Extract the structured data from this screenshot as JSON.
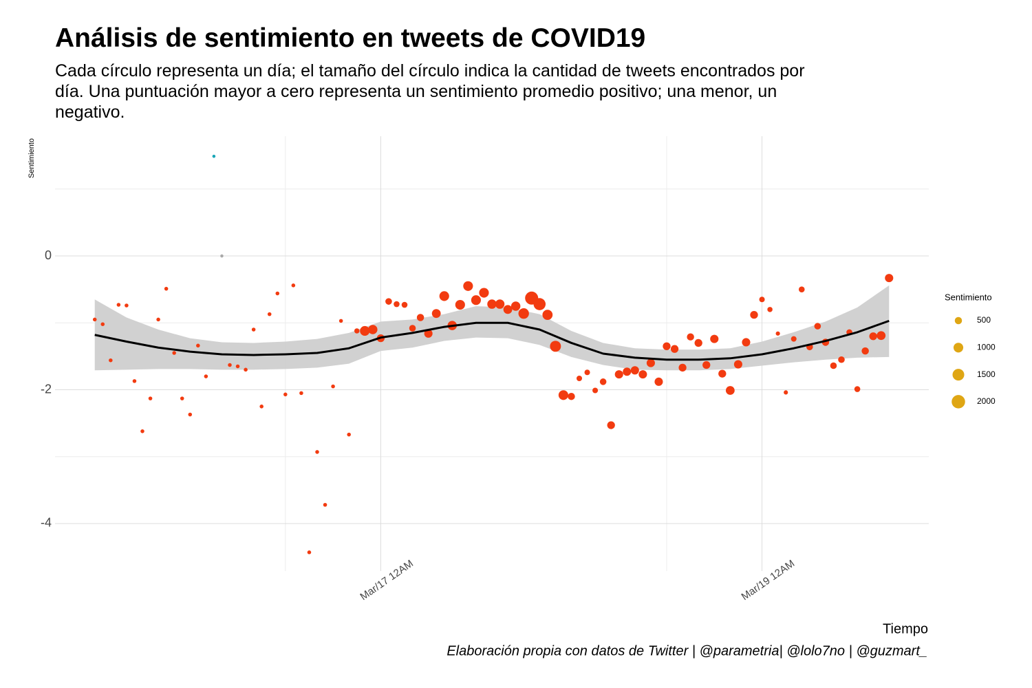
{
  "chart_data": {
    "type": "scatter",
    "title": "Análisis de sentimiento en tweets de COVID19",
    "subtitle": "Cada círculo representa un día; el tamaño del círculo indica la cantidad de tweets encontrados por día. Una puntuación mayor a cero representa un sentimiento promedio positivo; una menor, un negativo.",
    "x_label": "Tiempo",
    "y_label": "Sentimiento",
    "caption": "Elaboración propia con datos de Twitter | @parametria| @lolo7no | @guzmart_",
    "x": [
      "Mar/15 12PM",
      "Mar/15 1PM",
      "Mar/15 2PM",
      "Mar/15 3PM",
      "Mar/15 4PM",
      "Mar/15 5PM",
      "Mar/15 6PM",
      "Mar/15 7PM",
      "Mar/15 8PM",
      "Mar/15 9PM",
      "Mar/15 10PM",
      "Mar/15 11PM",
      "Mar/16 12AM",
      "Mar/16 1AM",
      "Mar/16 2AM",
      "Mar/16 3AM",
      "Mar/16 4AM",
      "Mar/16 5AM",
      "Mar/16 6AM",
      "Mar/16 7AM",
      "Mar/16 8AM",
      "Mar/16 9AM",
      "Mar/16 10AM",
      "Mar/16 11AM",
      "Mar/16 12PM",
      "Mar/16 1PM",
      "Mar/16 2PM",
      "Mar/16 3PM",
      "Mar/16 4PM",
      "Mar/16 5PM",
      "Mar/16 6PM",
      "Mar/16 7PM",
      "Mar/16 8PM",
      "Mar/16 9PM",
      "Mar/16 10PM",
      "Mar/16 11PM",
      "Mar/17 12AM",
      "Mar/17 1AM",
      "Mar/17 2AM",
      "Mar/17 3AM",
      "Mar/17 4AM",
      "Mar/17 5AM",
      "Mar/17 6AM",
      "Mar/17 7AM",
      "Mar/17 8AM",
      "Mar/17 9AM",
      "Mar/17 10AM",
      "Mar/17 11AM",
      "Mar/17 12PM",
      "Mar/17 1PM",
      "Mar/17 2PM",
      "Mar/17 3PM",
      "Mar/17 4PM",
      "Mar/17 5PM",
      "Mar/17 6PM",
      "Mar/17 7PM",
      "Mar/17 8PM",
      "Mar/17 9PM",
      "Mar/17 10PM",
      "Mar/17 11PM",
      "Mar/18 12AM",
      "Mar/18 1AM",
      "Mar/18 2AM",
      "Mar/18 3AM",
      "Mar/18 4AM",
      "Mar/18 5AM",
      "Mar/18 6AM",
      "Mar/18 7AM",
      "Mar/18 8AM",
      "Mar/18 9AM",
      "Mar/18 10AM",
      "Mar/18 11AM",
      "Mar/18 12PM",
      "Mar/18 1PM",
      "Mar/18 2PM",
      "Mar/18 3PM",
      "Mar/18 4PM",
      "Mar/18 5PM",
      "Mar/18 6PM",
      "Mar/18 7PM",
      "Mar/18 8PM",
      "Mar/18 9PM",
      "Mar/18 10PM",
      "Mar/18 11PM",
      "Mar/19 12AM",
      "Mar/19 1AM",
      "Mar/19 2AM",
      "Mar/19 3AM",
      "Mar/19 4AM",
      "Mar/19 5AM",
      "Mar/19 6AM",
      "Mar/19 7AM",
      "Mar/19 8AM",
      "Mar/19 9AM",
      "Mar/19 10AM",
      "Mar/19 11AM",
      "Mar/19 12PM",
      "Mar/19 1PM",
      "Mar/19 2PM",
      "Mar/19 3PM",
      "Mar/19 4PM"
    ],
    "values": [
      -0.95,
      -1.02,
      -1.56,
      -0.73,
      -0.74,
      -1.87,
      -2.62,
      -2.13,
      -0.95,
      -0.49,
      -1.45,
      -2.13,
      -2.37,
      -1.34,
      -1.8,
      1.49,
      0,
      -1.63,
      -1.65,
      -1.7,
      -1.1,
      -2.25,
      -0.87,
      -0.56,
      -2.07,
      -0.44,
      -2.05,
      -4.43,
      -2.93,
      -3.72,
      -1.95,
      -0.97,
      -2.67,
      -1.12,
      -1.12,
      -1.1,
      -1.23,
      -0.68,
      -0.72,
      -0.73,
      -1.08,
      -0.92,
      -1.16,
      -0.86,
      -0.6,
      -1.04,
      -0.73,
      -0.45,
      -0.66,
      -0.55,
      -0.72,
      -0.72,
      -0.8,
      -0.75,
      -0.86,
      -0.63,
      -0.72,
      -0.88,
      -1.35,
      -2.08,
      -2.1,
      -1.83,
      -1.74,
      -2.01,
      -1.88,
      -2.53,
      -1.77,
      -1.73,
      -1.71,
      -1.77,
      -1.6,
      -1.88,
      -1.35,
      -1.39,
      -1.67,
      -1.21,
      -1.3,
      -1.63,
      -1.24,
      -1.76,
      -2.01,
      -1.62,
      -1.29,
      -0.88,
      -0.65,
      -0.8,
      -1.16,
      -2.04,
      -1.24,
      -0.5,
      -1.36,
      -1.05,
      -1.29,
      -1.64,
      -1.55,
      -1.14,
      -1.99,
      -1.42,
      -1.2,
      -1.19,
      -0.33
    ],
    "sizes": [
      60,
      60,
      60,
      60,
      60,
      60,
      60,
      60,
      60,
      60,
      60,
      60,
      60,
      60,
      60,
      5,
      5,
      60,
      60,
      60,
      60,
      60,
      60,
      60,
      60,
      60,
      60,
      60,
      60,
      60,
      60,
      60,
      60,
      200,
      1000,
      900,
      600,
      400,
      300,
      300,
      400,
      500,
      700,
      800,
      1000,
      900,
      1000,
      1000,
      1000,
      1000,
      900,
      900,
      800,
      900,
      1200,
      1900,
      1600,
      1100,
      1300,
      1000,
      500,
      250,
      250,
      250,
      400,
      600,
      700,
      700,
      700,
      700,
      700,
      700,
      600,
      600,
      600,
      500,
      600,
      600,
      700,
      600,
      800,
      700,
      700,
      600,
      250,
      200,
      100,
      100,
      250,
      300,
      400,
      400,
      500,
      400,
      400,
      300,
      300,
      500,
      600,
      800,
      700
    ],
    "colors": [
      "#f23b10",
      "#f23b10",
      "#f23b10",
      "#f23b10",
      "#f23b10",
      "#f23b10",
      "#f23b10",
      "#f23b10",
      "#f23b10",
      "#f23b10",
      "#f23b10",
      "#f23b10",
      "#f23b10",
      "#f23b10",
      "#f23b10",
      "#1aa6b7",
      "#a9a9a9",
      "#f23b10",
      "#f23b10",
      "#f23b10",
      "#f23b10",
      "#f23b10",
      "#f23b10",
      "#f23b10",
      "#f23b10",
      "#f23b10",
      "#f23b10",
      "#f23b10",
      "#f23b10",
      "#f23b10",
      "#f23b10",
      "#f23b10",
      "#f23b10",
      "#f23b10",
      "#f23b10",
      "#f23b10",
      "#f23b10",
      "#f23b10",
      "#f23b10",
      "#f23b10",
      "#f23b10",
      "#f23b10",
      "#f23b10",
      "#f23b10",
      "#f23b10",
      "#f23b10",
      "#f23b10",
      "#f23b10",
      "#f23b10",
      "#f23b10",
      "#f23b10",
      "#f23b10",
      "#f23b10",
      "#f23b10",
      "#f23b10",
      "#f23b10",
      "#f23b10",
      "#f23b10",
      "#f23b10",
      "#f23b10",
      "#f23b10",
      "#f23b10",
      "#f23b10",
      "#f23b10",
      "#f23b10",
      "#f23b10",
      "#f23b10",
      "#f23b10",
      "#f23b10",
      "#f23b10",
      "#f23b10",
      "#f23b10",
      "#f23b10",
      "#f23b10",
      "#f23b10",
      "#f23b10",
      "#f23b10",
      "#f23b10",
      "#f23b10",
      "#f23b10",
      "#f23b10",
      "#f23b10",
      "#f23b10",
      "#f23b10",
      "#f23b10",
      "#f23b10",
      "#f23b10",
      "#f23b10",
      "#f23b10",
      "#f23b10",
      "#f23b10",
      "#f23b10",
      "#f23b10",
      "#f23b10",
      "#f23b10",
      "#f23b10",
      "#f23b10",
      "#f23b10",
      "#f23b10",
      "#f23b10",
      "#f23b10"
    ],
    "smooth": {
      "x": [
        "Mar/15 12PM",
        "Mar/15 4PM",
        "Mar/15 8PM",
        "Mar/16 12AM",
        "Mar/16 4AM",
        "Mar/16 8AM",
        "Mar/16 12PM",
        "Mar/16 4PM",
        "Mar/16 8PM",
        "Mar/17 12AM",
        "Mar/17 4AM",
        "Mar/17 8AM",
        "Mar/17 12PM",
        "Mar/17 4PM",
        "Mar/17 8PM",
        "Mar/18 12AM",
        "Mar/18 4AM",
        "Mar/18 8AM",
        "Mar/18 12PM",
        "Mar/18 4PM",
        "Mar/18 8PM",
        "Mar/19 12AM",
        "Mar/19 4AM",
        "Mar/19 8AM",
        "Mar/19 12PM",
        "Mar/19 4PM"
      ],
      "values": [
        -1.18,
        -1.28,
        -1.37,
        -1.43,
        -1.47,
        -1.48,
        -1.47,
        -1.45,
        -1.38,
        -1.22,
        -1.15,
        -1.06,
        -1.0,
        -1.0,
        -1.1,
        -1.3,
        -1.46,
        -1.52,
        -1.55,
        -1.55,
        -1.53,
        -1.47,
        -1.38,
        -1.27,
        -1.14,
        -0.97
      ],
      "upper": [
        -0.65,
        -0.92,
        -1.1,
        -1.23,
        -1.29,
        -1.3,
        -1.28,
        -1.24,
        -1.15,
        -0.98,
        -0.95,
        -0.87,
        -0.75,
        -0.77,
        -0.87,
        -1.12,
        -1.3,
        -1.38,
        -1.4,
        -1.4,
        -1.38,
        -1.28,
        -1.14,
        -0.98,
        -0.77,
        -0.44
      ],
      "lower": [
        -1.71,
        -1.7,
        -1.69,
        -1.69,
        -1.7,
        -1.7,
        -1.69,
        -1.67,
        -1.61,
        -1.42,
        -1.37,
        -1.27,
        -1.22,
        -1.23,
        -1.33,
        -1.51,
        -1.63,
        -1.7,
        -1.71,
        -1.71,
        -1.69,
        -1.64,
        -1.59,
        -1.55,
        -1.52,
        -1.51
      ],
      "color": "#000000",
      "band_color": "#cfcfcf"
    },
    "xlim": [
      "Mar/15 7AM",
      "Mar/19 9PM"
    ],
    "ylim": [
      -4.71,
      1.79
    ],
    "xticks": [
      "Mar/17 12AM",
      "Mar/19 12AM"
    ],
    "yticks": [
      0,
      -2,
      -4
    ],
    "minor_xticks": [
      "Mar/16 12PM",
      "Mar/18 12PM"
    ],
    "minor_yticks": [
      1,
      -1,
      -3
    ],
    "grid": true,
    "size_legend": {
      "title": "Sentimiento",
      "values": [
        500,
        1000,
        1500,
        2000
      ],
      "color": "#dfa614"
    }
  }
}
